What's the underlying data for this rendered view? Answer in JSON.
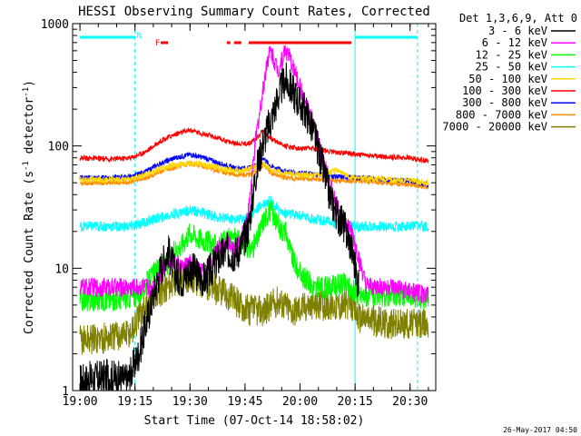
{
  "chart_data": {
    "type": "line",
    "title": "HESSI Observing Summary Count Rates, Corrected",
    "xlabel": "Start Time (07-Oct-14 18:58:02)",
    "ylabel_main": "Corrected Count Rate (s",
    "ylabel_sup1": "-1",
    "ylabel_mid": " detector",
    "ylabel_sup2": "-1",
    "ylabel_end": ")",
    "x_unit": "minutes after 19:00 UT",
    "xlim": [
      -2,
      97
    ],
    "ylim": [
      1,
      1000
    ],
    "yscale": "log",
    "x_ticks": [
      {
        "label": "19:00",
        "value": 0
      },
      {
        "label": "19:15",
        "value": 15
      },
      {
        "label": "19:30",
        "value": 30
      },
      {
        "label": "19:45",
        "value": 45
      },
      {
        "label": "20:00",
        "value": 60
      },
      {
        "label": "20:15",
        "value": 75
      },
      {
        "label": "20:30",
        "value": 90
      }
    ],
    "y_ticks": [
      {
        "label": "1",
        "value": 1
      },
      {
        "label": "10",
        "value": 10
      },
      {
        "label": "100",
        "value": 100
      },
      {
        "label": "1000",
        "value": 1000
      }
    ],
    "legend_title": "Det 1,3,6,9, Att 0",
    "legend_position": "outside-right",
    "series": [
      {
        "name": "3 - 6 keV",
        "color": "#000000",
        "points": [
          [
            0,
            1.2
          ],
          [
            8,
            1.3
          ],
          [
            13,
            1.2
          ],
          [
            16,
            2
          ],
          [
            18,
            3.5
          ],
          [
            20,
            6
          ],
          [
            22,
            10
          ],
          [
            24,
            14
          ],
          [
            26,
            9
          ],
          [
            28,
            8
          ],
          [
            30,
            10
          ],
          [
            32,
            9
          ],
          [
            34,
            8
          ],
          [
            36,
            10
          ],
          [
            38,
            12
          ],
          [
            40,
            14
          ],
          [
            42,
            13
          ],
          [
            44,
            15
          ],
          [
            46,
            22
          ],
          [
            48,
            60
          ],
          [
            50,
            110
          ],
          [
            52,
            160
          ],
          [
            54,
            250
          ],
          [
            55,
            300
          ],
          [
            56,
            350
          ],
          [
            58,
            280
          ],
          [
            60,
            220
          ],
          [
            62,
            180
          ],
          [
            64,
            120
          ],
          [
            66,
            70
          ],
          [
            68,
            40
          ],
          [
            70,
            28
          ],
          [
            72,
            22
          ],
          [
            74,
            15
          ],
          [
            76,
            7
          ]
        ]
      },
      {
        "name": "6 - 12 keV",
        "color": "#ff00ff",
        "points": [
          [
            0,
            7
          ],
          [
            8,
            7
          ],
          [
            16,
            7
          ],
          [
            20,
            7
          ],
          [
            22,
            9
          ],
          [
            24,
            12
          ],
          [
            26,
            11
          ],
          [
            28,
            10
          ],
          [
            30,
            11
          ],
          [
            32,
            10
          ],
          [
            34,
            9
          ],
          [
            36,
            12
          ],
          [
            38,
            15
          ],
          [
            40,
            16
          ],
          [
            42,
            14
          ],
          [
            44,
            17
          ],
          [
            46,
            30
          ],
          [
            48,
            120
          ],
          [
            50,
            300
          ],
          [
            51,
            500
          ],
          [
            52,
            600
          ],
          [
            54,
            420
          ],
          [
            55,
            500
          ],
          [
            56,
            620
          ],
          [
            58,
            450
          ],
          [
            60,
            300
          ],
          [
            62,
            200
          ],
          [
            64,
            140
          ],
          [
            66,
            80
          ],
          [
            68,
            50
          ],
          [
            70,
            32
          ],
          [
            72,
            25
          ],
          [
            74,
            20
          ],
          [
            76,
            12
          ],
          [
            78,
            7
          ],
          [
            84,
            7
          ],
          [
            95,
            6
          ]
        ]
      },
      {
        "name": "12 - 25 keV",
        "color": "#00ff00",
        "points": [
          [
            0,
            5.5
          ],
          [
            8,
            5.5
          ],
          [
            16,
            6
          ],
          [
            20,
            9
          ],
          [
            24,
            11
          ],
          [
            26,
            14
          ],
          [
            28,
            16
          ],
          [
            30,
            20
          ],
          [
            32,
            18
          ],
          [
            34,
            17
          ],
          [
            36,
            16
          ],
          [
            38,
            15
          ],
          [
            40,
            17
          ],
          [
            42,
            18
          ],
          [
            44,
            16
          ],
          [
            46,
            14
          ],
          [
            48,
            16
          ],
          [
            50,
            25
          ],
          [
            52,
            30
          ],
          [
            54,
            22
          ],
          [
            56,
            20
          ],
          [
            58,
            12
          ],
          [
            60,
            9
          ],
          [
            64,
            7
          ],
          [
            68,
            7
          ],
          [
            72,
            7.5
          ],
          [
            76,
            6
          ],
          [
            80,
            6
          ],
          [
            88,
            6
          ],
          [
            95,
            5.5
          ]
        ]
      },
      {
        "name": "25 - 50 keV",
        "color": "#00ffff",
        "points": [
          [
            0,
            22
          ],
          [
            8,
            22
          ],
          [
            14,
            22
          ],
          [
            18,
            24
          ],
          [
            22,
            26
          ],
          [
            26,
            28
          ],
          [
            30,
            30
          ],
          [
            34,
            28
          ],
          [
            38,
            26
          ],
          [
            42,
            25
          ],
          [
            46,
            26
          ],
          [
            48,
            30
          ],
          [
            50,
            34
          ],
          [
            52,
            36
          ],
          [
            54,
            30
          ],
          [
            56,
            28
          ],
          [
            60,
            27
          ],
          [
            64,
            25
          ],
          [
            68,
            24
          ],
          [
            72,
            23
          ],
          [
            76,
            22
          ],
          [
            82,
            22
          ],
          [
            90,
            22
          ],
          [
            95,
            22
          ]
        ]
      },
      {
        "name": "50 - 100 keV",
        "color": "#ffd700",
        "points": [
          [
            0,
            53
          ],
          [
            10,
            53
          ],
          [
            16,
            55
          ],
          [
            20,
            62
          ],
          [
            24,
            68
          ],
          [
            28,
            72
          ],
          [
            32,
            72
          ],
          [
            36,
            68
          ],
          [
            40,
            64
          ],
          [
            44,
            62
          ],
          [
            48,
            68
          ],
          [
            50,
            72
          ],
          [
            52,
            64
          ],
          [
            56,
            60
          ],
          [
            60,
            58
          ],
          [
            64,
            58
          ],
          [
            66,
            58
          ],
          [
            68,
            60
          ],
          [
            70,
            64
          ],
          [
            72,
            58
          ],
          [
            74,
            55
          ],
          [
            80,
            54
          ],
          [
            90,
            52
          ],
          [
            95,
            50
          ]
        ]
      },
      {
        "name": "100 - 300 keV",
        "color": "#ff0000",
        "points": [
          [
            0,
            80
          ],
          [
            8,
            78
          ],
          [
            14,
            80
          ],
          [
            18,
            90
          ],
          [
            22,
            110
          ],
          [
            26,
            125
          ],
          [
            30,
            135
          ],
          [
            34,
            125
          ],
          [
            38,
            115
          ],
          [
            42,
            105
          ],
          [
            46,
            105
          ],
          [
            48,
            115
          ],
          [
            50,
            135
          ],
          [
            52,
            115
          ],
          [
            56,
            100
          ],
          [
            60,
            95
          ],
          [
            64,
            95
          ],
          [
            68,
            90
          ],
          [
            72,
            88
          ],
          [
            76,
            85
          ],
          [
            82,
            82
          ],
          [
            90,
            80
          ],
          [
            95,
            75
          ]
        ]
      },
      {
        "name": "300 - 800 keV",
        "color": "#0000ff",
        "points": [
          [
            0,
            55
          ],
          [
            8,
            55
          ],
          [
            14,
            56
          ],
          [
            18,
            62
          ],
          [
            22,
            72
          ],
          [
            26,
            80
          ],
          [
            30,
            85
          ],
          [
            34,
            80
          ],
          [
            38,
            72
          ],
          [
            42,
            66
          ],
          [
            46,
            66
          ],
          [
            48,
            70
          ],
          [
            50,
            80
          ],
          [
            52,
            68
          ],
          [
            56,
            62
          ],
          [
            60,
            60
          ],
          [
            66,
            58
          ],
          [
            70,
            56
          ],
          [
            76,
            55
          ],
          [
            84,
            53
          ],
          [
            90,
            52
          ],
          [
            95,
            48
          ]
        ]
      },
      {
        "name": "800 - 7000 keV",
        "color": "#ff8c00",
        "points": [
          [
            0,
            50
          ],
          [
            8,
            50
          ],
          [
            14,
            51
          ],
          [
            18,
            55
          ],
          [
            22,
            62
          ],
          [
            26,
            68
          ],
          [
            30,
            72
          ],
          [
            34,
            68
          ],
          [
            38,
            62
          ],
          [
            42,
            58
          ],
          [
            46,
            58
          ],
          [
            48,
            62
          ],
          [
            50,
            70
          ],
          [
            52,
            60
          ],
          [
            56,
            55
          ],
          [
            60,
            54
          ],
          [
            66,
            53
          ],
          [
            70,
            52
          ],
          [
            76,
            52
          ],
          [
            84,
            50
          ],
          [
            90,
            48
          ],
          [
            95,
            46
          ]
        ]
      },
      {
        "name": "7000 - 20000 keV",
        "color": "#808000",
        "points": [
          [
            0,
            2.6
          ],
          [
            8,
            2.7
          ],
          [
            14,
            3
          ],
          [
            18,
            5
          ],
          [
            22,
            6.5
          ],
          [
            26,
            8
          ],
          [
            30,
            8.5
          ],
          [
            34,
            7.5
          ],
          [
            38,
            6.5
          ],
          [
            42,
            5.5
          ],
          [
            46,
            4.5
          ],
          [
            50,
            4.5
          ],
          [
            54,
            5.5
          ],
          [
            58,
            4.5
          ],
          [
            62,
            5
          ],
          [
            66,
            5
          ],
          [
            70,
            5
          ],
          [
            74,
            5
          ],
          [
            76,
            4
          ],
          [
            84,
            3.5
          ],
          [
            90,
            3.5
          ],
          [
            95,
            3.5
          ]
        ]
      }
    ],
    "annotations": {
      "night_bars": {
        "color": "#00ffff",
        "segments": [
          [
            0,
            15
          ],
          [
            75,
            92
          ]
        ]
      },
      "flare_bars": {
        "color": "#ff0000",
        "segments": [
          [
            22,
            24
          ],
          [
            40,
            41
          ],
          [
            42,
            44
          ],
          [
            46,
            74
          ]
        ]
      },
      "markers": [
        {
          "label": "N",
          "minute": 15,
          "color": "#00ffff"
        },
        {
          "label": "F",
          "minute": 20,
          "color": "#ff0000"
        }
      ],
      "vertical_lines": [
        {
          "minute": 15,
          "style": "dashed"
        },
        {
          "minute": 75,
          "style": "solid"
        },
        {
          "minute": 92,
          "style": "dashed"
        }
      ],
      "line_color": "#00ffff"
    },
    "grid": false
  },
  "footer": {
    "timestamp": "26-May-2017 04:50"
  }
}
